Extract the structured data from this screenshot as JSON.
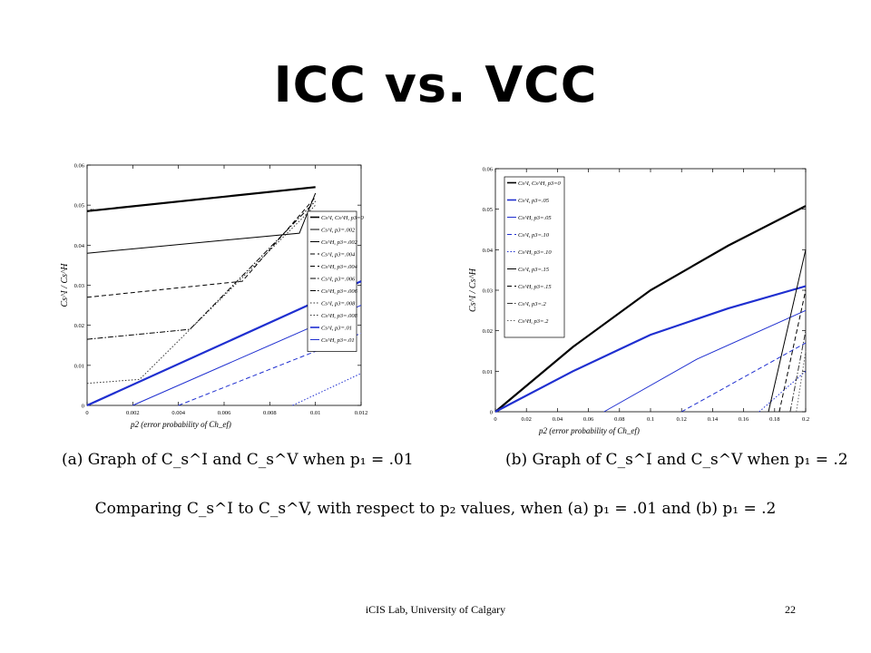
{
  "slide": {
    "title": "ICC vs. VCC",
    "caption_a": "(a) Graph of C_s^I and C_s^V when p₁ = .01",
    "caption_b": "(b) Graph of C_s^I and C_s^V when p₁ = .2",
    "summary": "Comparing C_s^I to C_s^V, with respect to p₂ values, when (a) p₁ = .01 and (b) p₁ = .2",
    "footer": "iCIS Lab, University of Calgary",
    "page_number": "22"
  },
  "chart_data": [
    {
      "type": "line",
      "ylabel": "Cs^I / Cs^H",
      "xlabel": "p2 (error probability of Ch_ef)",
      "xlim": [
        0,
        0.012
      ],
      "ylim": [
        0,
        0.06
      ],
      "xticks": [
        "0",
        "0.002",
        "0.004",
        "0.006",
        "0.008",
        "0.01",
        "0.012"
      ],
      "yticks": [
        "0",
        "0.01",
        "0.02",
        "0.03",
        "0.04",
        "0.05",
        "0.06"
      ],
      "grid": false,
      "legend_position": "right",
      "series": [
        {
          "name": "Cs^I, Cs^H, p3=0",
          "color": "#000000",
          "dash": "solid",
          "width": 2.2,
          "points": [
            [
              0,
              0.0485
            ],
            [
              0.01,
              0.0545
            ]
          ]
        },
        {
          "name": "Cs^I, p3=.002",
          "color": "#000000",
          "dash": "solid",
          "width": 1,
          "points": [
            [
              0,
              0.038
            ],
            [
              0.0093,
              0.043
            ],
            [
              0.01,
              0.053
            ]
          ]
        },
        {
          "name": "Cs^H, p3=.002",
          "color": "#000000",
          "dash": "solid",
          "width": 1,
          "points": [
            [
              0.0001,
              0.0485
            ],
            [
              0.0002,
              0.049
            ]
          ]
        },
        {
          "name": "Cs^I, p3=.004",
          "color": "#000000",
          "dash": "dashed",
          "width": 1,
          "points": [
            [
              0,
              0.027
            ],
            [
              0.0068,
              0.031
            ],
            [
              0.01,
              0.052
            ]
          ]
        },
        {
          "name": "Cs^H, p3=.004",
          "color": "#000000",
          "dash": "dashed",
          "width": 1,
          "points": [
            [
              0.0001,
              0.0485
            ],
            [
              0.0003,
              0.049
            ]
          ]
        },
        {
          "name": "Cs^I, p3=.006",
          "color": "#000000",
          "dash": "dashdot",
          "width": 1,
          "points": [
            [
              0,
              0.0165
            ],
            [
              0.0045,
              0.019
            ],
            [
              0.01,
              0.051
            ]
          ]
        },
        {
          "name": "Cs^H, p3=.006",
          "color": "#000000",
          "dash": "dashdot",
          "width": 1,
          "points": [
            [
              0.0001,
              0.0485
            ],
            [
              0.0004,
              0.049
            ]
          ]
        },
        {
          "name": "Cs^I, p3=.008",
          "color": "#333333",
          "dash": "dotted",
          "width": 1,
          "points": [
            [
              0,
              0.0055
            ],
            [
              0.0023,
              0.0065
            ],
            [
              0.01,
              0.05
            ]
          ]
        },
        {
          "name": "Cs^H, p3=.008",
          "color": "#333333",
          "dash": "dotted",
          "width": 1,
          "points": [
            [
              0.0001,
              0.0485
            ],
            [
              0.0005,
              0.049
            ]
          ]
        },
        {
          "name": "Cs^I, p3=.01",
          "color": "#1f2fd0",
          "dash": "solid",
          "width": 2.2,
          "points": [
            [
              0,
              0
            ],
            [
              0.012,
              0.031
            ]
          ]
        },
        {
          "name": "Cs^H, p3=.01",
          "color": "#1f2fd0",
          "dash": "solid",
          "width": 1,
          "points": [
            [
              0.002,
              0
            ],
            [
              0.012,
              0.025
            ]
          ]
        },
        {
          "name": "",
          "color": "#1f2fd0",
          "dash": "dashed",
          "width": 1,
          "points": [
            [
              0.004,
              0
            ],
            [
              0.012,
              0.018
            ]
          ]
        },
        {
          "name": "",
          "color": "#1f2fd0",
          "dash": "dotted",
          "width": 1,
          "points": [
            [
              0.009,
              0
            ],
            [
              0.012,
              0.008
            ]
          ]
        }
      ]
    },
    {
      "type": "line",
      "ylabel": "Cs^I / Cs^H",
      "xlabel": "p2 (error probability of Ch_ef)",
      "xlim": [
        0,
        0.2
      ],
      "ylim": [
        0,
        0.06
      ],
      "xticks": [
        "0",
        "0.02",
        "0.04",
        "0.06",
        "0.08",
        "0.1",
        "0.12",
        "0.14",
        "0.16",
        "0.18",
        "0.2"
      ],
      "yticks": [
        "0",
        "0.01",
        "0.02",
        "0.03",
        "0.04",
        "0.05",
        "0.06"
      ],
      "grid": false,
      "legend_position": "top-left",
      "series": [
        {
          "name": "Cs^I, Cs^H, p3=0",
          "color": "#000000",
          "dash": "solid",
          "width": 2.2,
          "points": [
            [
              0,
              0
            ],
            [
              0.05,
              0.016
            ],
            [
              0.1,
              0.03
            ],
            [
              0.15,
              0.041
            ],
            [
              0.2,
              0.0508
            ]
          ]
        },
        {
          "name": "Cs^I, p3=.05",
          "color": "#1f2fd0",
          "dash": "solid",
          "width": 2.2,
          "points": [
            [
              0,
              0
            ],
            [
              0.05,
              0.01
            ],
            [
              0.1,
              0.019
            ],
            [
              0.15,
              0.0255
            ],
            [
              0.2,
              0.031
            ]
          ]
        },
        {
          "name": "Cs^H, p3=.05",
          "color": "#1f2fd0",
          "dash": "solid",
          "width": 1,
          "points": [
            [
              0.07,
              0
            ],
            [
              0.13,
              0.013
            ],
            [
              0.2,
              0.025
            ]
          ]
        },
        {
          "name": "Cs^I, p3=.10",
          "color": "#1f2fd0",
          "dash": "dashed",
          "width": 1,
          "points": [
            [
              0.12,
              0
            ],
            [
              0.16,
              0.0085
            ],
            [
              0.2,
              0.017
            ]
          ]
        },
        {
          "name": "Cs^H, p3=.10",
          "color": "#1f2fd0",
          "dash": "dotted",
          "width": 1,
          "points": [
            [
              0.17,
              0
            ],
            [
              0.2,
              0.01
            ]
          ]
        },
        {
          "name": "Cs^I, p3=.15",
          "color": "#000000",
          "dash": "solid",
          "width": 1,
          "points": [
            [
              0.176,
              0
            ],
            [
              0.2,
              0.04
            ]
          ]
        },
        {
          "name": "Cs^H, p3=.15",
          "color": "#000000",
          "dash": "dashed",
          "width": 1,
          "points": [
            [
              0.183,
              0
            ],
            [
              0.2,
              0.03
            ]
          ]
        },
        {
          "name": "Cs^I, p3=.2",
          "color": "#333333",
          "dash": "dashdot",
          "width": 1,
          "points": [
            [
              0.19,
              0
            ],
            [
              0.2,
              0.02
            ]
          ]
        },
        {
          "name": "Cs^H, p3=.2",
          "color": "#666666",
          "dash": "dotted",
          "width": 1,
          "points": [
            [
              0.194,
              0
            ],
            [
              0.2,
              0.015
            ]
          ]
        }
      ]
    }
  ]
}
